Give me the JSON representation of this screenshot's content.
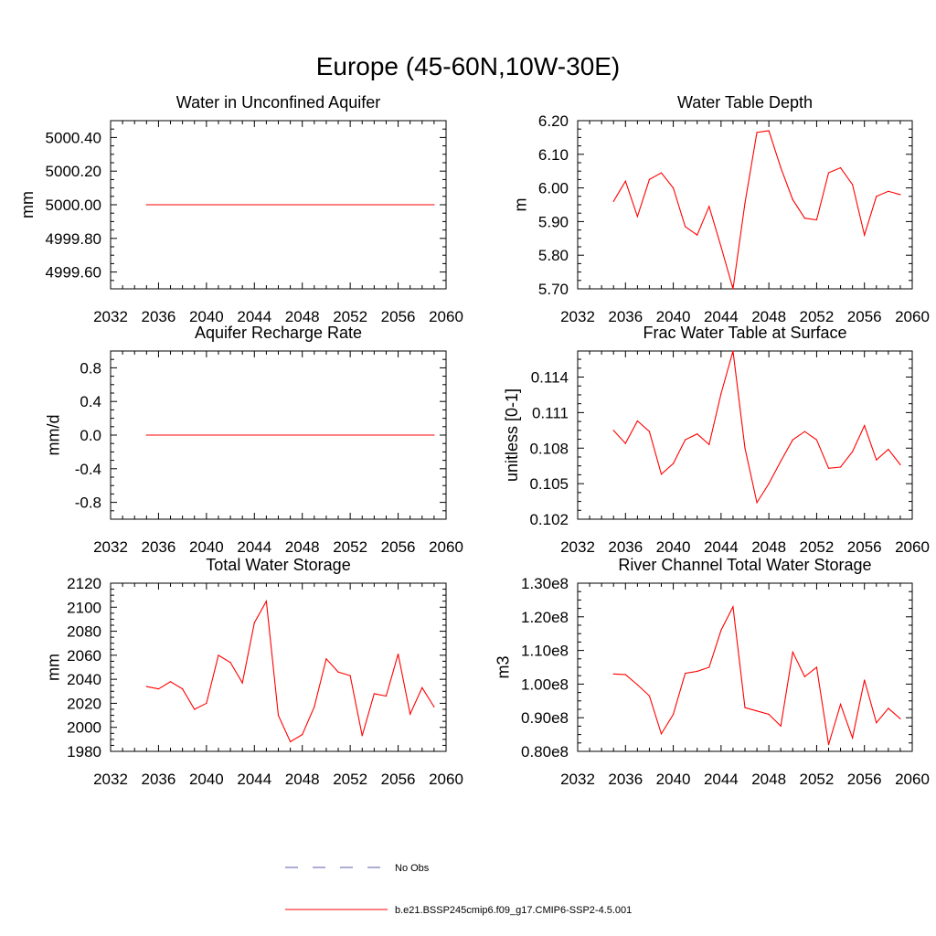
{
  "figure_title": "Europe (45-60N,10W-30E)",
  "legend": {
    "entries": [
      {
        "label": "No Obs",
        "color": "#5a5aa8",
        "style": "dashed"
      },
      {
        "label": "b.e21.BSSP245cmip6.f09_g17.CMIP6-SSP2-4.5.001",
        "color": "#ff0000",
        "style": "solid"
      }
    ]
  },
  "chart_data": [
    {
      "type": "line",
      "title": "Water in Unconfined Aquifer",
      "xlabel": "",
      "ylabel": "mm",
      "xlim": [
        2032,
        2060
      ],
      "ylim": [
        4999.5,
        5000.5
      ],
      "xticks": [
        2032,
        2036,
        2040,
        2044,
        2048,
        2052,
        2056,
        2060
      ],
      "xtick_labels": [
        "2032",
        "2036",
        "2040",
        "2044",
        "2048",
        "2052",
        "2056",
        "2060"
      ],
      "yticks": [
        4999.6,
        4999.8,
        5000.0,
        5000.2,
        5000.4
      ],
      "ytick_labels": [
        "4999.60",
        "4999.80",
        "5000.00",
        "5000.20",
        "5000.40"
      ],
      "x": [
        2035,
        2059
      ],
      "series": [
        {
          "name": "b.e21.BSSP245cmip6.f09_g17.CMIP6-SSP2-4.5.001",
          "color": "#ff0000",
          "values": [
            5000.0,
            5000.0
          ]
        }
      ]
    },
    {
      "type": "line",
      "title": "Water Table Depth",
      "xlabel": "",
      "ylabel": "m",
      "xlim": [
        2032,
        2060
      ],
      "ylim": [
        5.7,
        6.2
      ],
      "xticks": [
        2032,
        2036,
        2040,
        2044,
        2048,
        2052,
        2056,
        2060
      ],
      "xtick_labels": [
        "2032",
        "2036",
        "2040",
        "2044",
        "2048",
        "2052",
        "2056",
        "2060"
      ],
      "yticks": [
        5.7,
        5.8,
        5.9,
        6.0,
        6.1,
        6.2
      ],
      "ytick_labels": [
        "5.70",
        "5.80",
        "5.90",
        "6.00",
        "6.10",
        "6.20"
      ],
      "x": [
        2035,
        2036,
        2037,
        2038,
        2039,
        2040,
        2041,
        2042,
        2043,
        2044,
        2045,
        2046,
        2047,
        2048,
        2049,
        2050,
        2051,
        2052,
        2053,
        2054,
        2055,
        2056,
        2057,
        2058,
        2059
      ],
      "series": [
        {
          "name": "b.e21.BSSP245cmip6.f09_g17.CMIP6-SSP2-4.5.001",
          "color": "#ff0000",
          "values": [
            5.96,
            6.02,
            5.915,
            6.025,
            6.045,
            6.0,
            5.885,
            5.86,
            5.945,
            5.825,
            5.7,
            5.955,
            6.165,
            6.17,
            6.06,
            5.965,
            5.91,
            5.905,
            6.045,
            6.06,
            6.01,
            5.86,
            5.975,
            5.99,
            5.98
          ]
        }
      ]
    },
    {
      "type": "line",
      "title": "Aquifer Recharge Rate",
      "xlabel": "",
      "ylabel": "mm/d",
      "xlim": [
        2032,
        2060
      ],
      "ylim": [
        -1.0,
        1.0
      ],
      "xticks": [
        2032,
        2036,
        2040,
        2044,
        2048,
        2052,
        2056,
        2060
      ],
      "xtick_labels": [
        "2032",
        "2036",
        "2040",
        "2044",
        "2048",
        "2052",
        "2056",
        "2060"
      ],
      "yticks": [
        -0.8,
        -0.4,
        0.0,
        0.4,
        0.8
      ],
      "ytick_labels": [
        "-0.8",
        "-0.4",
        "0.0",
        "0.4",
        "0.8"
      ],
      "x": [
        2035,
        2059
      ],
      "series": [
        {
          "name": "b.e21.BSSP245cmip6.f09_g17.CMIP6-SSP2-4.5.001",
          "color": "#ff0000",
          "values": [
            0.0,
            0.0
          ]
        }
      ]
    },
    {
      "type": "line",
      "title": "Frac Water Table at Surface",
      "xlabel": "",
      "ylabel": "unitless [0-1]",
      "xlim": [
        2032,
        2060
      ],
      "ylim": [
        0.102,
        0.1162
      ],
      "xticks": [
        2032,
        2036,
        2040,
        2044,
        2048,
        2052,
        2056,
        2060
      ],
      "xtick_labels": [
        "2032",
        "2036",
        "2040",
        "2044",
        "2048",
        "2052",
        "2056",
        "2060"
      ],
      "yticks": [
        0.102,
        0.105,
        0.108,
        0.111,
        0.114
      ],
      "ytick_labels": [
        "0.102",
        "0.105",
        "0.108",
        "0.111",
        "0.114"
      ],
      "x": [
        2035,
        2036,
        2037,
        2038,
        2039,
        2040,
        2041,
        2042,
        2043,
        2044,
        2045,
        2046,
        2047,
        2048,
        2049,
        2050,
        2051,
        2052,
        2053,
        2054,
        2055,
        2056,
        2057,
        2058,
        2059
      ],
      "series": [
        {
          "name": "b.e21.BSSP245cmip6.f09_g17.CMIP6-SSP2-4.5.001",
          "color": "#ff0000",
          "values": [
            0.1095,
            0.1084,
            0.1103,
            0.1094,
            0.1058,
            0.1067,
            0.1087,
            0.1092,
            0.1083,
            0.1126,
            0.1162,
            0.108,
            0.1034,
            0.105,
            0.1069,
            0.1087,
            0.1094,
            0.1087,
            0.1063,
            0.1064,
            0.1077,
            0.1099,
            0.107,
            0.1079,
            0.1066
          ]
        }
      ]
    },
    {
      "type": "line",
      "title": "Total Water Storage",
      "xlabel": "",
      "ylabel": "mm",
      "xlim": [
        2032,
        2060
      ],
      "ylim": [
        1980,
        2120
      ],
      "xticks": [
        2032,
        2036,
        2040,
        2044,
        2048,
        2052,
        2056,
        2060
      ],
      "xtick_labels": [
        "2032",
        "2036",
        "2040",
        "2044",
        "2048",
        "2052",
        "2056",
        "2060"
      ],
      "yticks": [
        1980,
        2000,
        2020,
        2040,
        2060,
        2080,
        2100,
        2120
      ],
      "ytick_labels": [
        "1980",
        "2000",
        "2020",
        "2040",
        "2060",
        "2080",
        "2100",
        "2120"
      ],
      "x": [
        2035,
        2036,
        2037,
        2038,
        2039,
        2040,
        2041,
        2042,
        2043,
        2044,
        2045,
        2046,
        2047,
        2048,
        2049,
        2050,
        2051,
        2052,
        2053,
        2054,
        2055,
        2056,
        2057,
        2058,
        2059
      ],
      "series": [
        {
          "name": "b.e21.BSSP245cmip6.f09_g17.CMIP6-SSP2-4.5.001",
          "color": "#ff0000",
          "values": [
            2034,
            2032,
            2038,
            2032,
            2015,
            2020,
            2060,
            2054,
            2037,
            2087,
            2105,
            2010,
            1988,
            1994,
            2017,
            2057,
            2046,
            2043,
            1993,
            2028,
            2026,
            2061,
            2011,
            2033,
            2017
          ]
        }
      ]
    },
    {
      "type": "line",
      "title": "River Channel Total Water Storage",
      "xlabel": "",
      "ylabel": "m3",
      "xlim": [
        2032,
        2060
      ],
      "ylim": [
        80000000.0,
        130000000.0
      ],
      "xticks": [
        2032,
        2036,
        2040,
        2044,
        2048,
        2052,
        2056,
        2060
      ],
      "xtick_labels": [
        "2032",
        "2036",
        "2040",
        "2044",
        "2048",
        "2052",
        "2056",
        "2060"
      ],
      "yticks": [
        80000000.0,
        90000000.0,
        100000000.0,
        110000000.0,
        120000000.0,
        130000000.0
      ],
      "ytick_labels": [
        "0.80e8",
        "0.90e8",
        "1.00e8",
        "1.10e8",
        "1.20e8",
        "1.30e8"
      ],
      "x": [
        2035,
        2036,
        2037,
        2038,
        2039,
        2040,
        2041,
        2042,
        2043,
        2044,
        2045,
        2046,
        2047,
        2048,
        2049,
        2050,
        2051,
        2052,
        2053,
        2054,
        2055,
        2056,
        2057,
        2058,
        2059
      ],
      "series": [
        {
          "name": "b.e21.BSSP245cmip6.f09_g17.CMIP6-SSP2-4.5.001",
          "color": "#ff0000",
          "values": [
            103000000.0,
            102800000.0,
            99800000.0,
            96500000.0,
            85200000.0,
            91000000.0,
            103200000.0,
            103800000.0,
            105000000.0,
            116000000.0,
            123000000.0,
            93000000.0,
            92000000.0,
            91000000.0,
            87500000.0,
            109500000.0,
            102200000.0,
            105000000.0,
            82000000.0,
            94000000.0,
            84000000.0,
            101200000.0,
            88500000.0,
            92800000.0,
            89700000.0
          ]
        }
      ]
    }
  ]
}
